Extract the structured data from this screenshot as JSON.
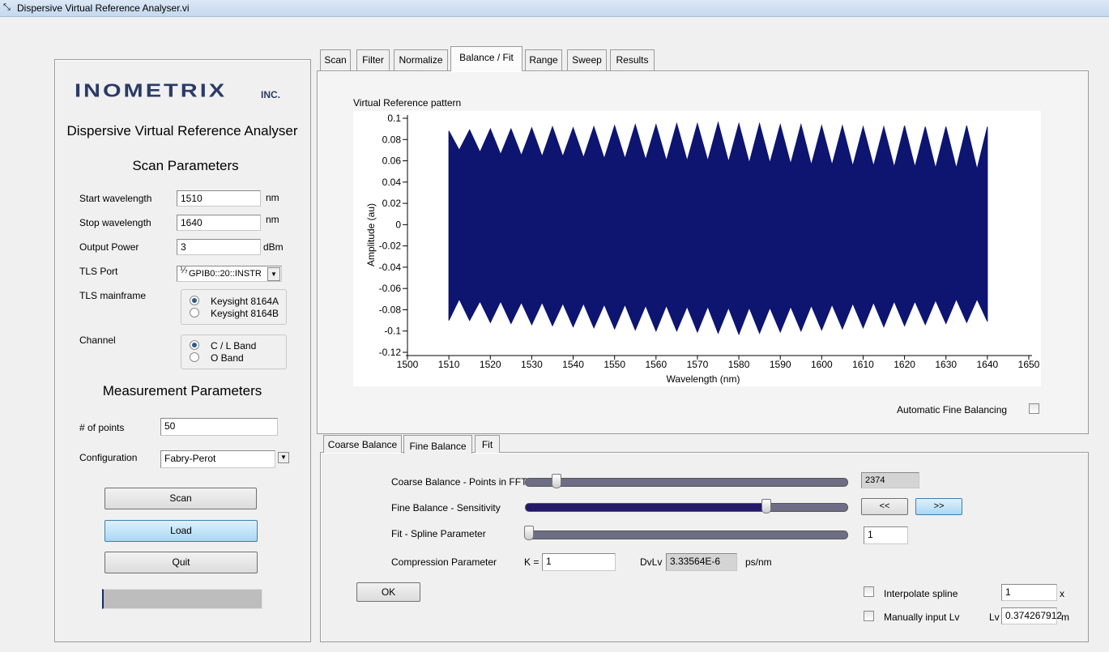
{
  "window": {
    "title": "Dispersive Virtual Reference Analyser.vi"
  },
  "left_panel": {
    "logo": "INOMETRIX",
    "logo_suffix": "INC.",
    "app_title": "Dispersive Virtual Reference Analyser",
    "scan_heading": "Scan Parameters",
    "start_label": "Start wavelength",
    "start_value": "1510",
    "start_unit": "nm",
    "stop_label": "Stop wavelength",
    "stop_value": "1640",
    "stop_unit": "nm",
    "power_label": "Output Power",
    "power_value": "3",
    "power_unit": "dBm",
    "port_label": "TLS Port",
    "port_value": "GPIB0::20::INSTR",
    "mainframe_label": "TLS mainframe",
    "mainframe_options": [
      "Keysight 8164A",
      "Keysight 8164B"
    ],
    "channel_label": "Channel",
    "channel_options": [
      "C / L Band",
      "O Band"
    ],
    "measurement_heading": "Measurement Parameters",
    "points_label": "# of points",
    "points_value": "50",
    "config_label": "Configuration",
    "config_value": "Fabry-Perot",
    "buttons": [
      "Scan",
      "Load",
      "Quit"
    ]
  },
  "tabs": [
    "Scan",
    "Filter",
    "Normalize",
    "Balance / Fit",
    "Range",
    "Sweep",
    "Results"
  ],
  "chart_data": {
    "type": "band",
    "title": "Virtual Reference pattern",
    "x_label": "Wavelength (nm)",
    "y_label": "Amplitude (au)",
    "color": "#0d1570",
    "xlim": [
      1500,
      1650
    ],
    "xticks": [
      1500,
      1510,
      1520,
      1530,
      1540,
      1550,
      1560,
      1570,
      1580,
      1590,
      1600,
      1610,
      1620,
      1630,
      1640,
      1650
    ],
    "ylim": [
      -0.12,
      0.1
    ],
    "yticks": [
      0.1,
      0.08,
      0.06,
      0.04,
      0.02,
      0,
      -0.02,
      -0.04,
      -0.06,
      -0.08,
      -0.1,
      -0.12
    ],
    "x": [
      1510,
      1512.5,
      1515,
      1517.5,
      1520,
      1522.5,
      1525,
      1527.5,
      1530,
      1532.5,
      1535,
      1537.5,
      1540,
      1542.5,
      1545,
      1547.5,
      1550,
      1552.5,
      1555,
      1557.5,
      1560,
      1562.5,
      1565,
      1567.5,
      1570,
      1572.5,
      1575,
      1577.5,
      1580,
      1582.5,
      1585,
      1587.5,
      1590,
      1592.5,
      1595,
      1597.5,
      1600,
      1602.5,
      1605,
      1607.5,
      1610,
      1612.5,
      1615,
      1617.5,
      1620,
      1622.5,
      1625,
      1627.5,
      1630,
      1632.5,
      1635,
      1637.5,
      1640
    ],
    "upper": [
      0.088,
      0.07,
      0.089,
      0.068,
      0.09,
      0.066,
      0.09,
      0.065,
      0.091,
      0.064,
      0.092,
      0.064,
      0.091,
      0.063,
      0.092,
      0.062,
      0.093,
      0.062,
      0.094,
      0.061,
      0.094,
      0.06,
      0.095,
      0.06,
      0.095,
      0.06,
      0.096,
      0.059,
      0.095,
      0.058,
      0.095,
      0.058,
      0.094,
      0.057,
      0.094,
      0.056,
      0.093,
      0.056,
      0.093,
      0.055,
      0.092,
      0.055,
      0.092,
      0.054,
      0.093,
      0.054,
      0.092,
      0.053,
      0.092,
      0.053,
      0.093,
      0.052,
      0.092
    ],
    "lower": [
      -0.09,
      -0.07,
      -0.09,
      -0.072,
      -0.092,
      -0.072,
      -0.093,
      -0.073,
      -0.094,
      -0.073,
      -0.095,
      -0.074,
      -0.096,
      -0.074,
      -0.097,
      -0.075,
      -0.098,
      -0.075,
      -0.099,
      -0.076,
      -0.1,
      -0.076,
      -0.1,
      -0.077,
      -0.101,
      -0.077,
      -0.102,
      -0.078,
      -0.103,
      -0.078,
      -0.102,
      -0.078,
      -0.101,
      -0.077,
      -0.1,
      -0.076,
      -0.099,
      -0.075,
      -0.098,
      -0.074,
      -0.097,
      -0.073,
      -0.096,
      -0.072,
      -0.095,
      -0.072,
      -0.094,
      -0.071,
      -0.093,
      -0.07,
      -0.092,
      -0.07,
      -0.091
    ]
  },
  "auto_fine_balancing": "Automatic Fine Balancing",
  "sub_tabs": [
    "Coarse Balance",
    "Fine Balance",
    "Fit"
  ],
  "controls": {
    "coarse_label": "Coarse Balance - Points in FFT",
    "coarse_value": "2374",
    "fine_label": "Fine Balance - Sensitivity",
    "fine_prev": "<<",
    "fine_next": ">>",
    "spline_label": "Fit - Spline Parameter",
    "spline_value": "1",
    "compression_label": "Compression Parameter",
    "k_label": "K =",
    "k_value": "1",
    "dvlv_label": "DvLv",
    "dvlv_value": "3.33564E-6",
    "dvlv_unit": "ps/nm",
    "ok": "OK",
    "interpolate_label": "Interpolate spline",
    "interpolate_value": "1",
    "interpolate_unit": "x",
    "manual_label": "Manually input Lv",
    "lv_label": "Lv",
    "lv_value": "0.374267912",
    "lv_unit": "m"
  }
}
